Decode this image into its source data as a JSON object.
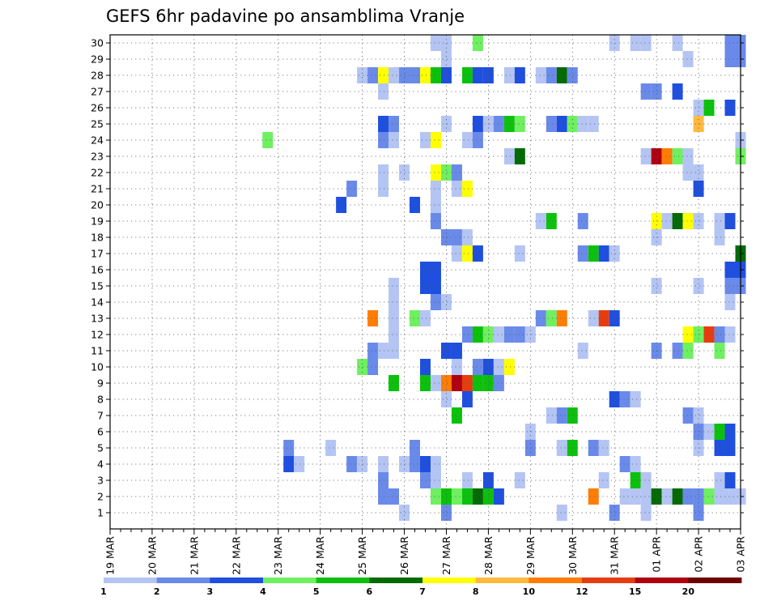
{
  "chart_data": {
    "type": "heatmap",
    "title": "GEFS 6hr padavine po ansamblima Vranje",
    "x_tick_labels": [
      "19 MAR",
      "20 MAR",
      "21 MAR",
      "22 MAR",
      "23 MAR",
      "24 MAR",
      "25 MAR",
      "26 MAR",
      "27 MAR",
      "28 MAR",
      "29 MAR",
      "30 MAR",
      "31 MAR",
      "01 APR",
      "02 APR",
      "03 APR"
    ],
    "y_tick_labels": [
      "1",
      "2",
      "3",
      "4",
      "5",
      "6",
      "7",
      "8",
      "9",
      "10",
      "11",
      "12",
      "13",
      "14",
      "15",
      "16",
      "17",
      "18",
      "19",
      "20",
      "21",
      "22",
      "23",
      "24",
      "25",
      "26",
      "27",
      "28",
      "29",
      "30"
    ],
    "time_range": [
      "19 MAR 00Z",
      "03 APR 00Z"
    ],
    "time_step_hours": 6,
    "ensemble_members": 30,
    "grid": true,
    "colorbar": {
      "levels": [
        "1",
        "2",
        "3",
        "4",
        "5",
        "6",
        "7",
        "8",
        "10",
        "12",
        "15",
        "20"
      ],
      "colors": [
        "#b4c5f4",
        "#6a8ae9",
        "#1f4fde",
        "#6ef060",
        "#0cc10c",
        "#046a04",
        "#ffff00",
        "#ffba3e",
        "#ff7d05",
        "#e63d0f",
        "#b00010",
        "#6e0000"
      ]
    },
    "cells": [
      [
        28,
        1,
        1
      ],
      [
        32,
        1,
        2
      ],
      [
        43,
        1,
        1
      ],
      [
        48,
        1,
        2
      ],
      [
        51,
        1,
        1
      ],
      [
        56,
        1,
        2
      ],
      [
        26,
        2,
        2
      ],
      [
        27,
        2,
        2
      ],
      [
        31,
        2,
        4
      ],
      [
        32,
        2,
        5
      ],
      [
        33,
        2,
        4
      ],
      [
        34,
        2,
        5
      ],
      [
        35,
        2,
        6
      ],
      [
        36,
        2,
        5
      ],
      [
        37,
        2,
        3
      ],
      [
        46,
        2,
        9
      ],
      [
        49,
        2,
        1
      ],
      [
        50,
        2,
        1
      ],
      [
        51,
        2,
        1
      ],
      [
        52,
        2,
        6
      ],
      [
        53,
        2,
        1
      ],
      [
        54,
        2,
        6
      ],
      [
        55,
        2,
        2
      ],
      [
        56,
        2,
        2
      ],
      [
        57,
        2,
        4
      ],
      [
        58,
        2,
        1
      ],
      [
        59,
        2,
        1
      ],
      [
        60,
        2,
        1
      ],
      [
        26,
        3,
        2
      ],
      [
        30,
        3,
        2
      ],
      [
        31,
        3,
        1
      ],
      [
        34,
        3,
        1
      ],
      [
        36,
        3,
        3
      ],
      [
        39,
        3,
        1
      ],
      [
        47,
        3,
        1
      ],
      [
        50,
        3,
        5
      ],
      [
        51,
        3,
        1
      ],
      [
        58,
        3,
        1
      ],
      [
        59,
        3,
        3
      ],
      [
        17,
        4,
        3
      ],
      [
        18,
        4,
        1
      ],
      [
        23,
        4,
        2
      ],
      [
        24,
        4,
        1
      ],
      [
        26,
        4,
        1
      ],
      [
        28,
        4,
        1
      ],
      [
        29,
        4,
        2
      ],
      [
        30,
        4,
        3
      ],
      [
        31,
        4,
        1
      ],
      [
        49,
        4,
        2
      ],
      [
        50,
        4,
        1
      ],
      [
        17,
        5,
        2
      ],
      [
        21,
        5,
        1
      ],
      [
        29,
        5,
        2
      ],
      [
        40,
        5,
        2
      ],
      [
        43,
        5,
        1
      ],
      [
        44,
        5,
        5
      ],
      [
        46,
        5,
        2
      ],
      [
        47,
        5,
        1
      ],
      [
        56,
        5,
        1
      ],
      [
        58,
        5,
        3
      ],
      [
        59,
        5,
        3
      ],
      [
        40,
        6,
        1
      ],
      [
        56,
        6,
        2
      ],
      [
        57,
        6,
        1
      ],
      [
        58,
        6,
        5
      ],
      [
        59,
        6,
        3
      ],
      [
        33,
        7,
        5
      ],
      [
        42,
        7,
        1
      ],
      [
        43,
        7,
        2
      ],
      [
        44,
        7,
        5
      ],
      [
        55,
        7,
        2
      ],
      [
        56,
        7,
        1
      ],
      [
        32,
        8,
        1
      ],
      [
        34,
        8,
        3
      ],
      [
        48,
        8,
        3
      ],
      [
        49,
        8,
        2
      ],
      [
        50,
        8,
        1
      ],
      [
        27,
        9,
        5
      ],
      [
        30,
        9,
        5
      ],
      [
        31,
        9,
        1
      ],
      [
        32,
        9,
        9
      ],
      [
        33,
        9,
        11
      ],
      [
        34,
        9,
        10
      ],
      [
        35,
        9,
        5
      ],
      [
        36,
        9,
        5
      ],
      [
        37,
        9,
        2
      ],
      [
        24,
        10,
        4
      ],
      [
        25,
        10,
        2
      ],
      [
        30,
        10,
        3
      ],
      [
        33,
        10,
        1
      ],
      [
        35,
        10,
        2
      ],
      [
        36,
        10,
        3
      ],
      [
        37,
        10,
        1
      ],
      [
        38,
        10,
        7
      ],
      [
        25,
        11,
        2
      ],
      [
        26,
        11,
        1
      ],
      [
        27,
        11,
        1
      ],
      [
        32,
        11,
        3
      ],
      [
        33,
        11,
        3
      ],
      [
        45,
        11,
        1
      ],
      [
        52,
        11,
        2
      ],
      [
        54,
        11,
        2
      ],
      [
        55,
        11,
        4
      ],
      [
        58,
        11,
        4
      ],
      [
        27,
        12,
        1
      ],
      [
        34,
        12,
        2
      ],
      [
        35,
        12,
        5
      ],
      [
        36,
        12,
        4
      ],
      [
        37,
        12,
        1
      ],
      [
        38,
        12,
        2
      ],
      [
        39,
        12,
        2
      ],
      [
        40,
        12,
        1
      ],
      [
        55,
        12,
        7
      ],
      [
        56,
        12,
        4
      ],
      [
        57,
        12,
        10
      ],
      [
        58,
        12,
        2
      ],
      [
        59,
        12,
        1
      ],
      [
        25,
        13,
        9
      ],
      [
        27,
        13,
        1
      ],
      [
        29,
        13,
        4
      ],
      [
        30,
        13,
        1
      ],
      [
        41,
        13,
        2
      ],
      [
        42,
        13,
        4
      ],
      [
        43,
        13,
        9
      ],
      [
        46,
        13,
        1
      ],
      [
        47,
        13,
        10
      ],
      [
        48,
        13,
        3
      ],
      [
        27,
        14,
        1
      ],
      [
        31,
        14,
        2
      ],
      [
        32,
        14,
        1
      ],
      [
        59,
        14,
        1
      ],
      [
        27,
        15,
        1
      ],
      [
        30,
        15,
        3
      ],
      [
        31,
        15,
        3
      ],
      [
        52,
        15,
        1
      ],
      [
        56,
        15,
        1
      ],
      [
        59,
        15,
        2
      ],
      [
        60,
        15,
        2
      ],
      [
        30,
        16,
        3
      ],
      [
        31,
        16,
        3
      ],
      [
        59,
        16,
        3
      ],
      [
        60,
        16,
        3
      ],
      [
        33,
        17,
        1
      ],
      [
        34,
        17,
        7
      ],
      [
        35,
        17,
        3
      ],
      [
        39,
        17,
        1
      ],
      [
        45,
        17,
        2
      ],
      [
        46,
        17,
        5
      ],
      [
        47,
        17,
        3
      ],
      [
        48,
        17,
        1
      ],
      [
        60,
        17,
        6
      ],
      [
        32,
        18,
        2
      ],
      [
        33,
        18,
        2
      ],
      [
        34,
        18,
        1
      ],
      [
        52,
        18,
        1
      ],
      [
        58,
        18,
        1
      ],
      [
        31,
        19,
        2
      ],
      [
        41,
        19,
        1
      ],
      [
        42,
        19,
        5
      ],
      [
        45,
        19,
        2
      ],
      [
        52,
        19,
        7
      ],
      [
        53,
        19,
        1
      ],
      [
        54,
        19,
        6
      ],
      [
        55,
        19,
        7
      ],
      [
        56,
        19,
        1
      ],
      [
        58,
        19,
        1
      ],
      [
        59,
        19,
        3
      ],
      [
        22,
        20,
        3
      ],
      [
        29,
        20,
        3
      ],
      [
        31,
        20,
        1
      ],
      [
        23,
        21,
        2
      ],
      [
        26,
        21,
        1
      ],
      [
        31,
        21,
        1
      ],
      [
        33,
        21,
        1
      ],
      [
        34,
        21,
        7
      ],
      [
        56,
        21,
        3
      ],
      [
        26,
        22,
        1
      ],
      [
        28,
        22,
        1
      ],
      [
        31,
        22,
        7
      ],
      [
        32,
        22,
        4
      ],
      [
        33,
        22,
        2
      ],
      [
        55,
        22,
        1
      ],
      [
        56,
        22,
        1
      ],
      [
        38,
        23,
        1
      ],
      [
        39,
        23,
        6
      ],
      [
        51,
        23,
        1
      ],
      [
        52,
        23,
        11
      ],
      [
        53,
        23,
        9
      ],
      [
        54,
        23,
        4
      ],
      [
        55,
        23,
        1
      ],
      [
        60,
        23,
        4
      ],
      [
        15,
        24,
        4
      ],
      [
        26,
        24,
        2
      ],
      [
        27,
        24,
        1
      ],
      [
        30,
        24,
        1
      ],
      [
        31,
        24,
        7
      ],
      [
        34,
        24,
        1
      ],
      [
        35,
        24,
        2
      ],
      [
        60,
        24,
        1
      ],
      [
        26,
        25,
        3
      ],
      [
        27,
        25,
        2
      ],
      [
        32,
        25,
        1
      ],
      [
        35,
        25,
        3
      ],
      [
        36,
        25,
        1
      ],
      [
        37,
        25,
        2
      ],
      [
        38,
        25,
        5
      ],
      [
        39,
        25,
        4
      ],
      [
        42,
        25,
        2
      ],
      [
        43,
        25,
        3
      ],
      [
        44,
        25,
        4
      ],
      [
        45,
        25,
        1
      ],
      [
        46,
        25,
        1
      ],
      [
        56,
        25,
        8
      ],
      [
        56,
        26,
        1
      ],
      [
        57,
        26,
        5
      ],
      [
        59,
        26,
        3
      ],
      [
        26,
        27,
        1
      ],
      [
        51,
        27,
        2
      ],
      [
        52,
        27,
        2
      ],
      [
        54,
        27,
        3
      ],
      [
        24,
        28,
        1
      ],
      [
        25,
        28,
        2
      ],
      [
        26,
        28,
        7
      ],
      [
        27,
        28,
        1
      ],
      [
        28,
        28,
        2
      ],
      [
        29,
        28,
        2
      ],
      [
        30,
        28,
        7
      ],
      [
        31,
        28,
        5
      ],
      [
        32,
        28,
        3
      ],
      [
        34,
        28,
        5
      ],
      [
        35,
        28,
        3
      ],
      [
        36,
        28,
        3
      ],
      [
        38,
        28,
        1
      ],
      [
        39,
        28,
        3
      ],
      [
        41,
        28,
        1
      ],
      [
        42,
        28,
        2
      ],
      [
        43,
        28,
        6
      ],
      [
        44,
        28,
        2
      ],
      [
        32,
        29,
        1
      ],
      [
        55,
        29,
        1
      ],
      [
        59,
        29,
        2
      ],
      [
        60,
        29,
        2
      ],
      [
        31,
        30,
        1
      ],
      [
        32,
        30,
        1
      ],
      [
        35,
        30,
        4
      ],
      [
        48,
        30,
        1
      ],
      [
        50,
        30,
        1
      ],
      [
        51,
        30,
        1
      ],
      [
        54,
        30,
        1
      ],
      [
        59,
        30,
        2
      ],
      [
        60,
        30,
        2
      ]
    ]
  }
}
